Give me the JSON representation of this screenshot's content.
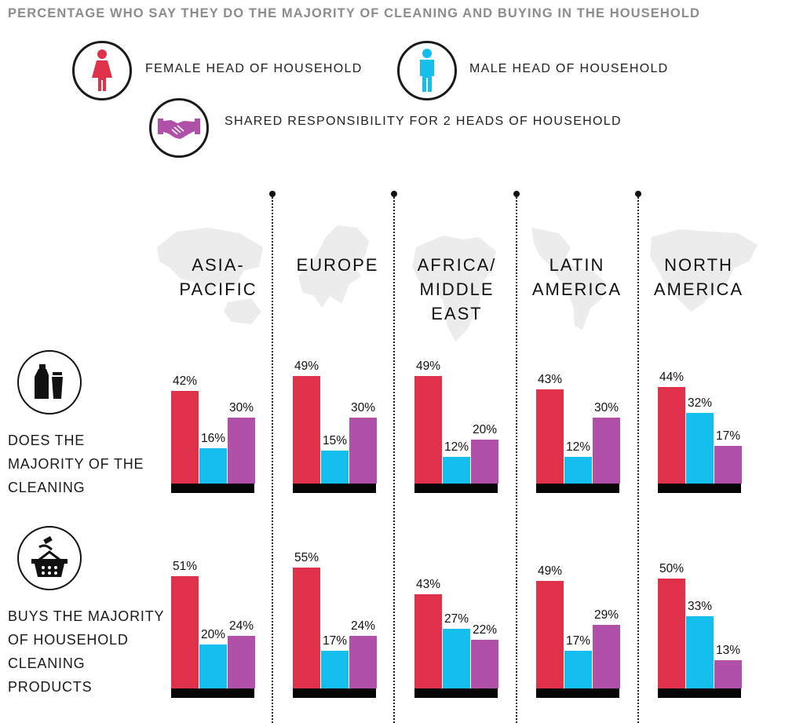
{
  "title": "PERCENTAGE WHO SAY THEY DO THE MAJORITY OF CLEANING AND BUYING IN THE HOUSEHOLD",
  "legend": [
    {
      "label": "FEMALE HEAD OF HOUSEHOLD",
      "icon": "female-person-icon",
      "color": "#e0314b"
    },
    {
      "label": "MALE HEAD OF HOUSEHOLD",
      "icon": "male-person-icon",
      "color": "#14bfee"
    },
    {
      "label": "SHARED RESPONSIBILITY FOR 2 HEADS OF HOUSEHOLD",
      "icon": "handshake-icon",
      "color": "#b150a8"
    }
  ],
  "rows": [
    {
      "label": "DOES THE\nMAJORITY OF THE\nCLEANING",
      "icon": "cleaning-products-icon"
    },
    {
      "label": "BUYS THE MAJORITY\nOF HOUSEHOLD\nCLEANING\nPRODUCTS",
      "icon": "shopping-basket-icon"
    }
  ],
  "chart_data": {
    "type": "bar",
    "series_names": [
      "FEMALE HEAD OF HOUSEHOLD",
      "MALE HEAD OF HOUSEHOLD",
      "SHARED RESPONSIBILITY FOR 2 HEADS OF HOUSEHOLD"
    ],
    "colors": [
      "#e0314b",
      "#14bfee",
      "#b150a8"
    ],
    "unit": "%",
    "regions": [
      {
        "name": "ASIA-\nPACIFIC",
        "cleaning": [
          42,
          16,
          30
        ],
        "buying": [
          51,
          20,
          24
        ]
      },
      {
        "name": "EUROPE",
        "cleaning": [
          49,
          15,
          30
        ],
        "buying": [
          55,
          17,
          24
        ]
      },
      {
        "name": "AFRICA/\nMIDDLE\nEAST",
        "cleaning": [
          49,
          12,
          20
        ],
        "buying": [
          43,
          27,
          22
        ]
      },
      {
        "name": "LATIN\nAMERICA",
        "cleaning": [
          43,
          12,
          30
        ],
        "buying": [
          49,
          17,
          29
        ]
      },
      {
        "name": "NORTH\nAMERICA",
        "cleaning": [
          44,
          32,
          17
        ],
        "buying": [
          50,
          33,
          13
        ]
      }
    ]
  }
}
